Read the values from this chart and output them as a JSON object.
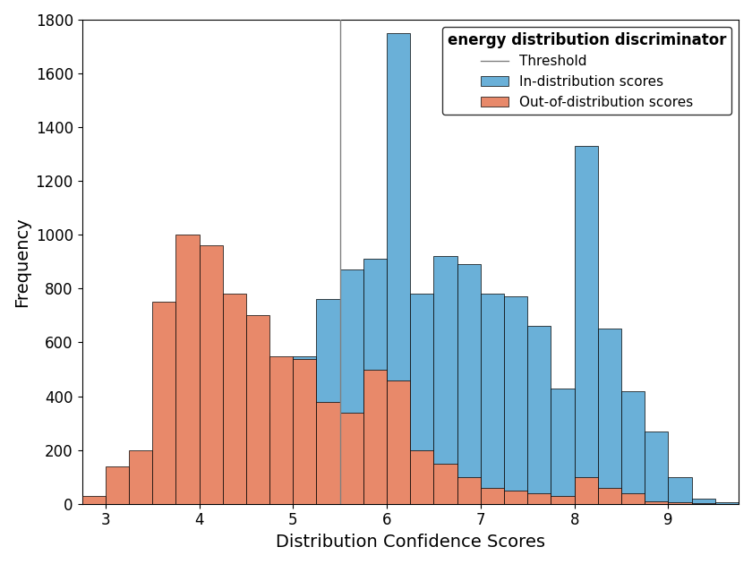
{
  "title": "energy distribution discriminator",
  "xlabel": "Distribution Confidence Scores",
  "ylabel": "Frequency",
  "xlim": [
    2.75,
    9.75
  ],
  "ylim": [
    0,
    1800
  ],
  "yticks": [
    0,
    200,
    400,
    600,
    800,
    1000,
    1200,
    1400,
    1600,
    1800
  ],
  "xticks": [
    3,
    4,
    5,
    6,
    7,
    8,
    9
  ],
  "threshold": 5.5,
  "bin_edges": [
    2.75,
    3.0,
    3.25,
    3.5,
    3.75,
    4.0,
    4.25,
    4.5,
    4.75,
    5.0,
    5.25,
    5.5,
    5.75,
    6.0,
    6.25,
    6.5,
    6.75,
    7.0,
    7.25,
    7.5,
    7.75,
    8.0,
    8.25,
    8.5,
    8.75,
    9.0,
    9.25,
    9.5,
    9.75
  ],
  "in_dist_counts": [
    0,
    0,
    0,
    0,
    0,
    0,
    0,
    200,
    340,
    550,
    760,
    870,
    910,
    1750,
    780,
    920,
    890,
    780,
    770,
    660,
    430,
    1330,
    650,
    420,
    270,
    100,
    20,
    5
  ],
  "out_dist_counts": [
    30,
    140,
    200,
    750,
    1000,
    960,
    780,
    700,
    550,
    540,
    380,
    340,
    500,
    460,
    200,
    150,
    100,
    60,
    50,
    40,
    30,
    100,
    60,
    40,
    10,
    5,
    3,
    0
  ],
  "in_dist_color": "#6ab0d8",
  "out_dist_color": "#e8896a",
  "threshold_color": "#808080",
  "legend_title_fontsize": 12,
  "legend_fontsize": 11,
  "axis_label_fontsize": 14,
  "tick_fontsize": 12
}
